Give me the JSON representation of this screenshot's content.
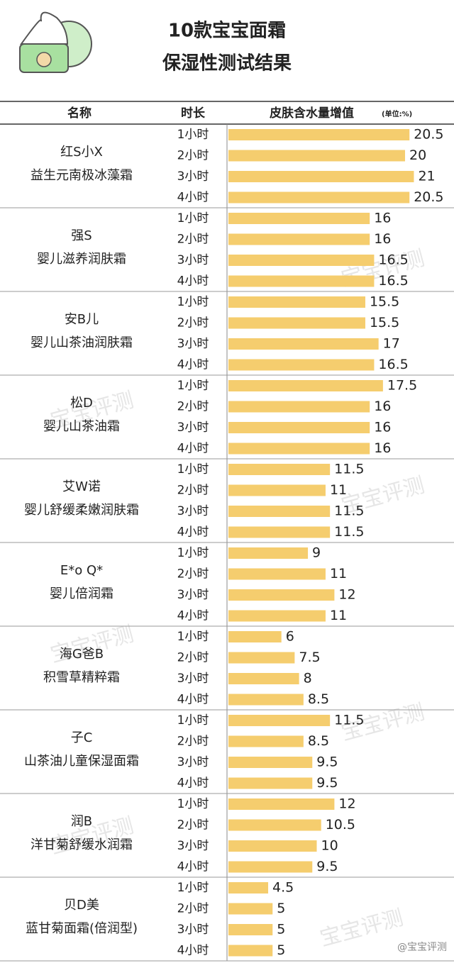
{
  "chart_data": {
    "type": "bar",
    "title": "10款宝宝面霜",
    "subtitle": "保湿性测试结果",
    "columns": [
      "名称",
      "时长",
      "皮肤含水量增值"
    ],
    "unit": "(单位:%)",
    "durations": [
      "1小时",
      "2小时",
      "3小时",
      "4小时"
    ],
    "color": "#f5cd6e",
    "products": [
      {
        "name": [
          "红S小X",
          "益生元南极冰藻霜"
        ],
        "values": [
          20.5,
          20,
          21,
          20.5
        ]
      },
      {
        "name": [
          "强S",
          "婴儿滋养润肤霜"
        ],
        "values": [
          16,
          16,
          16.5,
          16.5
        ]
      },
      {
        "name": [
          "安B儿",
          "婴儿山茶油润肤霜"
        ],
        "values": [
          15.5,
          15.5,
          17,
          16.5
        ]
      },
      {
        "name": [
          "松D",
          "婴儿山茶油霜"
        ],
        "values": [
          17.5,
          16,
          16,
          16
        ]
      },
      {
        "name": [
          "艾W诺",
          "婴儿舒缓柔嫩润肤霜"
        ],
        "values": [
          11.5,
          11,
          11.5,
          11.5
        ]
      },
      {
        "name": [
          "E*o Q*",
          "婴儿倍润霜"
        ],
        "values": [
          9,
          11,
          12,
          11
        ]
      },
      {
        "name": [
          "海G爸B",
          "积雪草精粹霜"
        ],
        "values": [
          6,
          7.5,
          8,
          8.5
        ]
      },
      {
        "name": [
          "子C",
          "山茶油儿童保湿面霜"
        ],
        "values": [
          11.5,
          8.5,
          9.5,
          9.5
        ]
      },
      {
        "name": [
          "润B",
          "洋甘菊舒缓水润霜"
        ],
        "values": [
          12,
          10.5,
          10,
          9.5
        ]
      },
      {
        "name": [
          "贝D美",
          "蓝甘菊面霜(倍润型)"
        ],
        "values": [
          4.5,
          5,
          5,
          5
        ]
      }
    ],
    "watermark": "宝宝评测",
    "credit": "@宝宝评测"
  }
}
